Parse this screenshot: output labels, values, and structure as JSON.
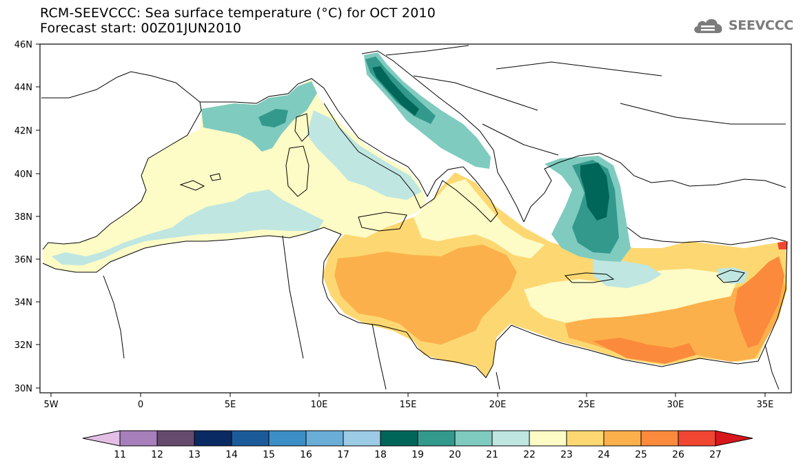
{
  "title": {
    "line1": "RCM-SEEVCCC: Sea surface temperature (°C) for OCT 2010",
    "line2": "Forecast start: 00Z01JUN2010"
  },
  "logo": {
    "text": "SEEVCCC",
    "icon": "cloud-icon"
  },
  "map": {
    "latitude_labels": [
      "46N",
      "44N",
      "42N",
      "40N",
      "38N",
      "36N",
      "34N",
      "32N",
      "30N"
    ],
    "longitude_labels": [
      "5W",
      "0",
      "5E",
      "10E",
      "15E",
      "20E",
      "25E",
      "30E",
      "35E"
    ],
    "colors": {
      "land": "#ffffff",
      "coast": "#000000",
      "t19": "#00665a",
      "t20": "#33998c",
      "t21": "#7fcbbf",
      "t22": "#bfe6e1",
      "t23": "#fdfbc6",
      "t24": "#fdd872",
      "t25": "#fcb04b",
      "t26": "#fb8a3c",
      "t27": "#f04632"
    }
  },
  "colorbar": {
    "labels": [
      "11",
      "12",
      "13",
      "14",
      "15",
      "16",
      "17",
      "18",
      "19",
      "20",
      "21",
      "22",
      "23",
      "24",
      "25",
      "26",
      "27"
    ],
    "colors": [
      "#e3bfe5",
      "#a77fba",
      "#664a6e",
      "#0a2a63",
      "#1b5b9a",
      "#3c8fc6",
      "#6aaed8",
      "#9ccbe6",
      "#00665a",
      "#33998c",
      "#7fcbbf",
      "#bfe6e1",
      "#fdfbc6",
      "#fdd872",
      "#fcb04b",
      "#fb8a3c",
      "#f04632",
      "#d8171c"
    ]
  }
}
